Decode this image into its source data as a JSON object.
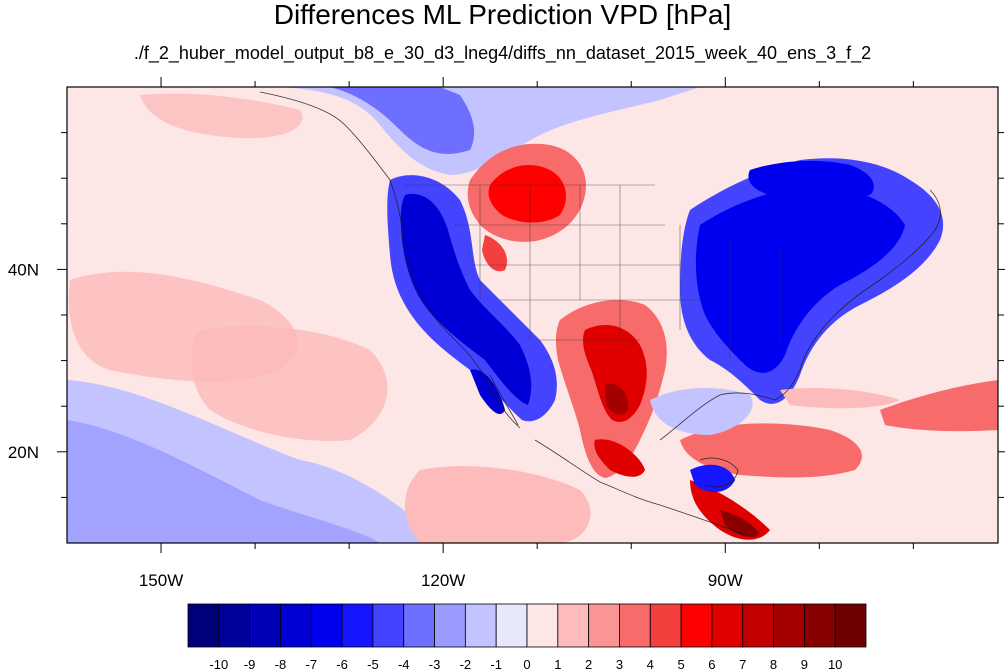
{
  "title": "Differences ML Prediction VPD [hPa]",
  "subtitle": "./f_2_huber_model_output_b8_e_30_d3_lneg4/diffs_nn_dataset_2015_week_40_ens_3_f_2",
  "map": {
    "projection": "cylindrical-equidistant",
    "lon_range": [
      -160,
      -61
    ],
    "lat_range": [
      10,
      60
    ],
    "lon_ticks": [
      {
        "lon": -150,
        "label": "150W"
      },
      {
        "lon": -120,
        "label": "120W"
      },
      {
        "lon": -90,
        "label": "90W"
      }
    ],
    "lat_ticks": [
      {
        "lat": 20,
        "label": "20N"
      },
      {
        "lat": 40,
        "label": "40N"
      }
    ],
    "field_pattern": [
      "strong negative (blue) along the US west coast and Baja California",
      "strong negative (blue) over the eastern US and southeastern Canada",
      "positive (red) over Montana / southern Canadian prairies",
      "strong positive (red) over Texas and northern Mexico",
      "positive (red) over southern Mexico and Central America",
      "weak positive (light pink) over much of the Pacific Ocean"
    ]
  },
  "colorbar": {
    "labels": [
      "-10",
      "-9",
      "-8",
      "-7",
      "-6",
      "-5",
      "-4",
      "-3",
      "-2",
      "-1",
      "0",
      "1",
      "2",
      "3",
      "4",
      "5",
      "6",
      "7",
      "8",
      "9",
      "10"
    ],
    "colors": [
      "#00007a",
      "#00009a",
      "#0000b8",
      "#0000d6",
      "#0000f0",
      "#1515ff",
      "#4444ff",
      "#6f6fff",
      "#9a9aff",
      "#c3c3ff",
      "#e8e8fb",
      "#fde6e6",
      "#fdbbbb",
      "#fb9494",
      "#f76b6b",
      "#f43f3f",
      "#ff0000",
      "#e00000",
      "#c20000",
      "#a40000",
      "#880000",
      "#700000"
    ]
  }
}
